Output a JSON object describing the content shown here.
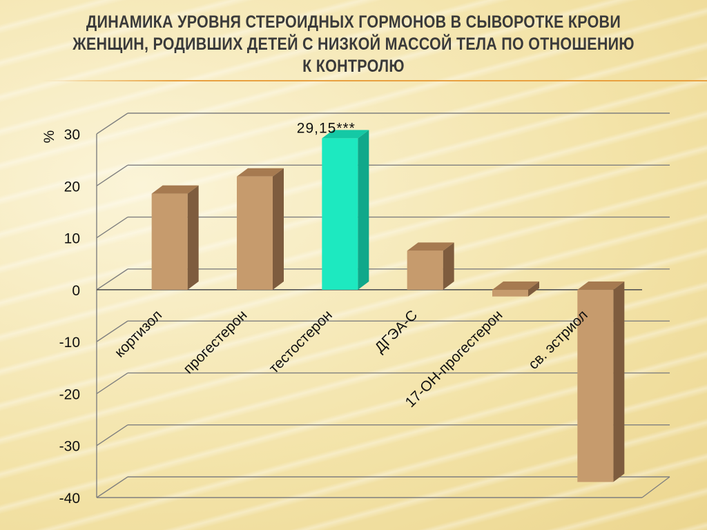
{
  "title": "Динамика уровня стероидных гормонов в сыворотке крови женщин, родивших детей с низкой массой тела по отношению к контролю",
  "colors": {
    "bar_default": "#c69b6d",
    "bar_highlight": "#1de9c0",
    "grid": "#7f7f7f",
    "title_rule": "#e8a040"
  },
  "chart_data": {
    "type": "bar",
    "title": "",
    "ylabel": "%",
    "ylim": [
      -40,
      30
    ],
    "yticks": [
      "-40",
      "-30",
      "-20",
      "-10",
      "0",
      "10",
      "20",
      "30"
    ],
    "grid": true,
    "categories": [
      "кортизол",
      "прогестерон",
      "тестостерон",
      "ДГЭА-С",
      "17-ОН-прогестерон",
      "св. эстриол"
    ],
    "values": [
      18.5,
      21.8,
      29.15,
      7.5,
      -1.3,
      -37
    ],
    "highlight_index": 2,
    "data_labels": [
      {
        "index": 2,
        "text": "29,15***"
      }
    ]
  }
}
